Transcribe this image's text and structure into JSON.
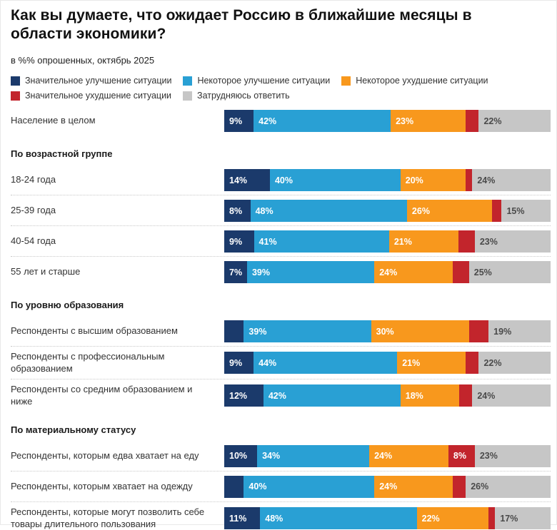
{
  "chart_data": {
    "type": "bar",
    "stacked": true,
    "orientation": "horizontal",
    "unit": "percent of respondents",
    "title": "Как вы думаете, что ожидает Россию в ближайшие месяцы в области экономики?",
    "subtitle": "в %% опрошенных, октябрь 2025",
    "legend_position": "top",
    "legend": [
      {
        "key": "significant-improvement",
        "label": "Значительное улучшение ситуации",
        "color": "#1b3a6b",
        "label_color": "#ffffff"
      },
      {
        "key": "some-improvement",
        "label": "Некоторое улучшение ситуации",
        "color": "#29a0d4",
        "label_color": "#ffffff"
      },
      {
        "key": "some-worsening",
        "label": "Некоторое ухудшение ситуации",
        "color": "#f8981d",
        "label_color": "#ffffff"
      },
      {
        "key": "significant-worsening",
        "label": "Значительное ухудшение ситуации",
        "color": "#c2252c",
        "label_color": "#ffffff"
      },
      {
        "key": "hard-to-answer",
        "label": "Затрудняюсь ответить",
        "color": "#c6c6c6",
        "label_color": "#4a4a4a"
      }
    ],
    "groups": [
      {
        "header": "",
        "rows": [
          {
            "label": "Население в целом",
            "values": [
              9,
              42,
              23,
              4,
              22
            ],
            "display": [
              "9%",
              "42%",
              "23%",
              "",
              "22%"
            ]
          }
        ]
      },
      {
        "header": "По возрастной группе",
        "rows": [
          {
            "label": "18-24 года",
            "values": [
              14,
              40,
              20,
              2,
              24
            ],
            "display": [
              "14%",
              "40%",
              "20%",
              "",
              "24%"
            ]
          },
          {
            "label": "25-39 года",
            "values": [
              8,
              48,
              26,
              3,
              15
            ],
            "display": [
              "8%",
              "48%",
              "26%",
              "",
              "15%"
            ]
          },
          {
            "label": "40-54 года",
            "values": [
              9,
              41,
              21,
              5,
              23
            ],
            "display": [
              "9%",
              "41%",
              "21%",
              "",
              "23%"
            ]
          },
          {
            "label": "55 лет и старше",
            "values": [
              7,
              39,
              24,
              5,
              25
            ],
            "display": [
              "7%",
              "39%",
              "24%",
              "",
              "25%"
            ]
          }
        ]
      },
      {
        "header": "По уровню образования",
        "rows": [
          {
            "label": "Респонденты с высшим образованием",
            "values": [
              6,
              39,
              30,
              6,
              19
            ],
            "display": [
              "",
              "39%",
              "30%",
              "",
              "19%"
            ]
          },
          {
            "label": "Респонденты с профессиональным образованием",
            "values": [
              9,
              44,
              21,
              4,
              22
            ],
            "display": [
              "9%",
              "44%",
              "21%",
              "",
              "22%"
            ]
          },
          {
            "label": "Респонденты со средним образованием и ниже",
            "values": [
              12,
              42,
              18,
              4,
              24
            ],
            "display": [
              "12%",
              "42%",
              "18%",
              "",
              "24%"
            ]
          }
        ]
      },
      {
        "header": "По материальному статусу",
        "rows": [
          {
            "label": "Респонденты, которым едва хватает на еду",
            "values": [
              10,
              34,
              24,
              8,
              23
            ],
            "display": [
              "10%",
              "34%",
              "24%",
              "8%",
              "23%"
            ]
          },
          {
            "label": "Респонденты, которым хватает на одежду",
            "values": [
              6,
              40,
              24,
              4,
              26
            ],
            "display": [
              "",
              "40%",
              "24%",
              "",
              "26%"
            ]
          },
          {
            "label": "Респонденты, которые могут позволить себе товары длительного пользования",
            "values": [
              11,
              48,
              22,
              2,
              17
            ],
            "display": [
              "11%",
              "48%",
              "22%",
              "",
              "17%"
            ]
          }
        ]
      }
    ]
  }
}
